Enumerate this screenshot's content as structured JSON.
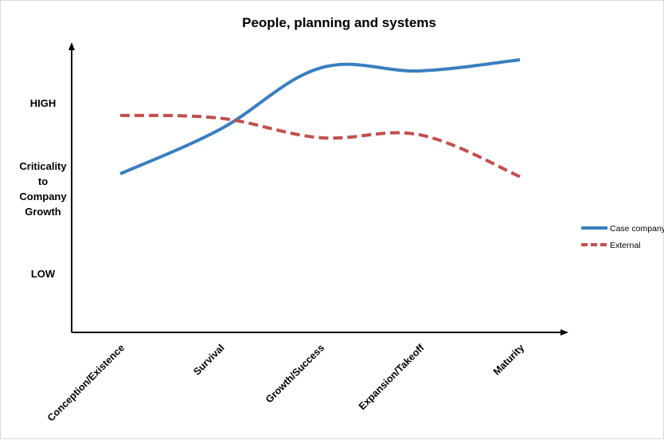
{
  "chart_data": {
    "type": "line",
    "title": "People, planning and systems",
    "y_labels": {
      "high": "HIGH",
      "mid": [
        "Criticality",
        "to",
        "Company",
        "Growth"
      ],
      "low": "LOW"
    },
    "categories": [
      "Conception/Existence",
      "Survival",
      "Growth/Success",
      "Expansion/Takeoff",
      "Maturity"
    ],
    "ylim": [
      0,
      10
    ],
    "grid": false,
    "legend_position": "right",
    "series": [
      {
        "name": "Case company",
        "values": [
          5.7,
          7.3,
          9.5,
          9.4,
          9.8
        ],
        "color": "#3a7ebf",
        "dash": "solid"
      },
      {
        "name": "External",
        "values": [
          7.8,
          7.7,
          7.0,
          7.1,
          5.6
        ],
        "color": "#c0504d",
        "dash": "dashed"
      }
    ]
  }
}
